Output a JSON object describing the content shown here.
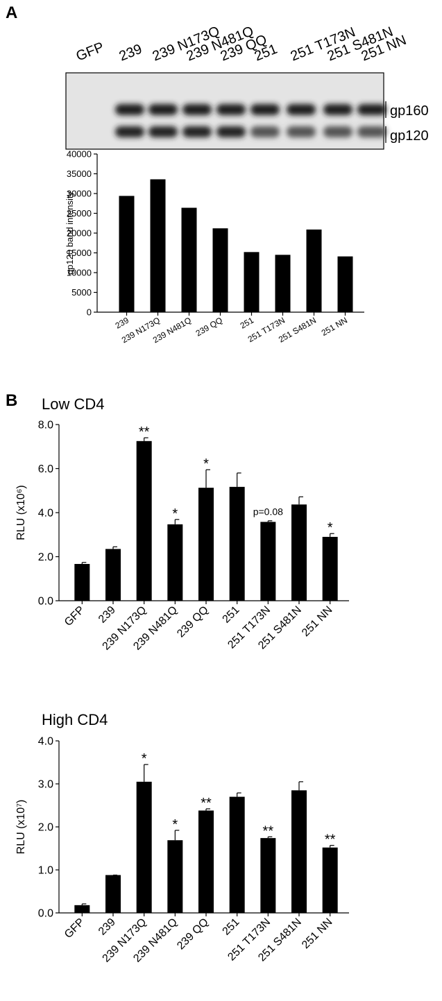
{
  "panel_labels": [
    "A",
    "B"
  ],
  "blot": {
    "lanes": [
      "GFP",
      "239",
      "239 N173Q",
      "239 N481Q",
      "239 QQ",
      "251",
      "251 T173N",
      "251 S481N",
      "251 NN"
    ],
    "bands": [
      "gp160",
      "gp120"
    ]
  },
  "chart_data": [
    {
      "type": "bar",
      "y_label": "gp120 band intensity",
      "color": "#000000",
      "categories": [
        "239",
        "239 N173Q",
        "239 N481Q",
        "239 QQ",
        "251",
        "251 T173N",
        "251 S481N",
        "251 NN"
      ],
      "values": [
        29400,
        33600,
        26400,
        21200,
        15200,
        14500,
        20900,
        14100
      ],
      "ylim": [
        0,
        40000
      ],
      "yticks": [
        0,
        5000,
        10000,
        15000,
        20000,
        25000,
        30000,
        35000,
        40000
      ]
    },
    {
      "type": "bar",
      "title": "Low CD4",
      "y_label": "RLU (x10⁶)",
      "color": "#000000",
      "categories": [
        "GFP",
        "239",
        "239 N173Q",
        "239 N481Q",
        "239 QQ",
        "251",
        "251 T173N",
        "251 S481N",
        "251 NN"
      ],
      "values": [
        1.67,
        2.35,
        7.25,
        3.47,
        5.13,
        5.17,
        3.58,
        4.37,
        2.9
      ],
      "error": [
        0.07,
        0.1,
        0.15,
        0.22,
        0.82,
        0.63,
        0.05,
        0.35,
        0.15
      ],
      "annotations": [
        null,
        null,
        "**",
        "*",
        "*",
        null,
        "p=0.08",
        null,
        "*"
      ],
      "ylim": [
        0,
        8
      ],
      "yticks": [
        {
          "value": 0,
          "label": "0.0"
        },
        {
          "value": 2,
          "label": "2.0"
        },
        {
          "value": 4,
          "label": "4.0"
        },
        {
          "value": 6,
          "label": "6.0"
        },
        {
          "value": 8,
          "label": "8.0"
        }
      ]
    },
    {
      "type": "bar",
      "title": "High CD4",
      "y_label": "RLU (x10⁷)",
      "color": "#000000",
      "categories": [
        "GFP",
        "239",
        "239 N173Q",
        "239 N481Q",
        "239 QQ",
        "251",
        "251 T173N",
        "251 S481N",
        "251 NN"
      ],
      "values": [
        0.18,
        0.88,
        3.05,
        1.69,
        2.38,
        2.7,
        1.74,
        2.85,
        1.52
      ],
      "error": [
        0.03,
        0,
        0.4,
        0.23,
        0.04,
        0.09,
        0.03,
        0.2,
        0.05
      ],
      "annotations": [
        null,
        null,
        "*",
        "*",
        "**",
        null,
        "**",
        null,
        "**"
      ],
      "ylim": [
        0,
        4
      ],
      "yticks": [
        {
          "value": 0,
          "label": "0.0"
        },
        {
          "value": 1,
          "label": "1.0"
        },
        {
          "value": 2,
          "label": "2.0"
        },
        {
          "value": 3,
          "label": "3.0"
        },
        {
          "value": 4,
          "label": "4.0"
        }
      ]
    }
  ]
}
